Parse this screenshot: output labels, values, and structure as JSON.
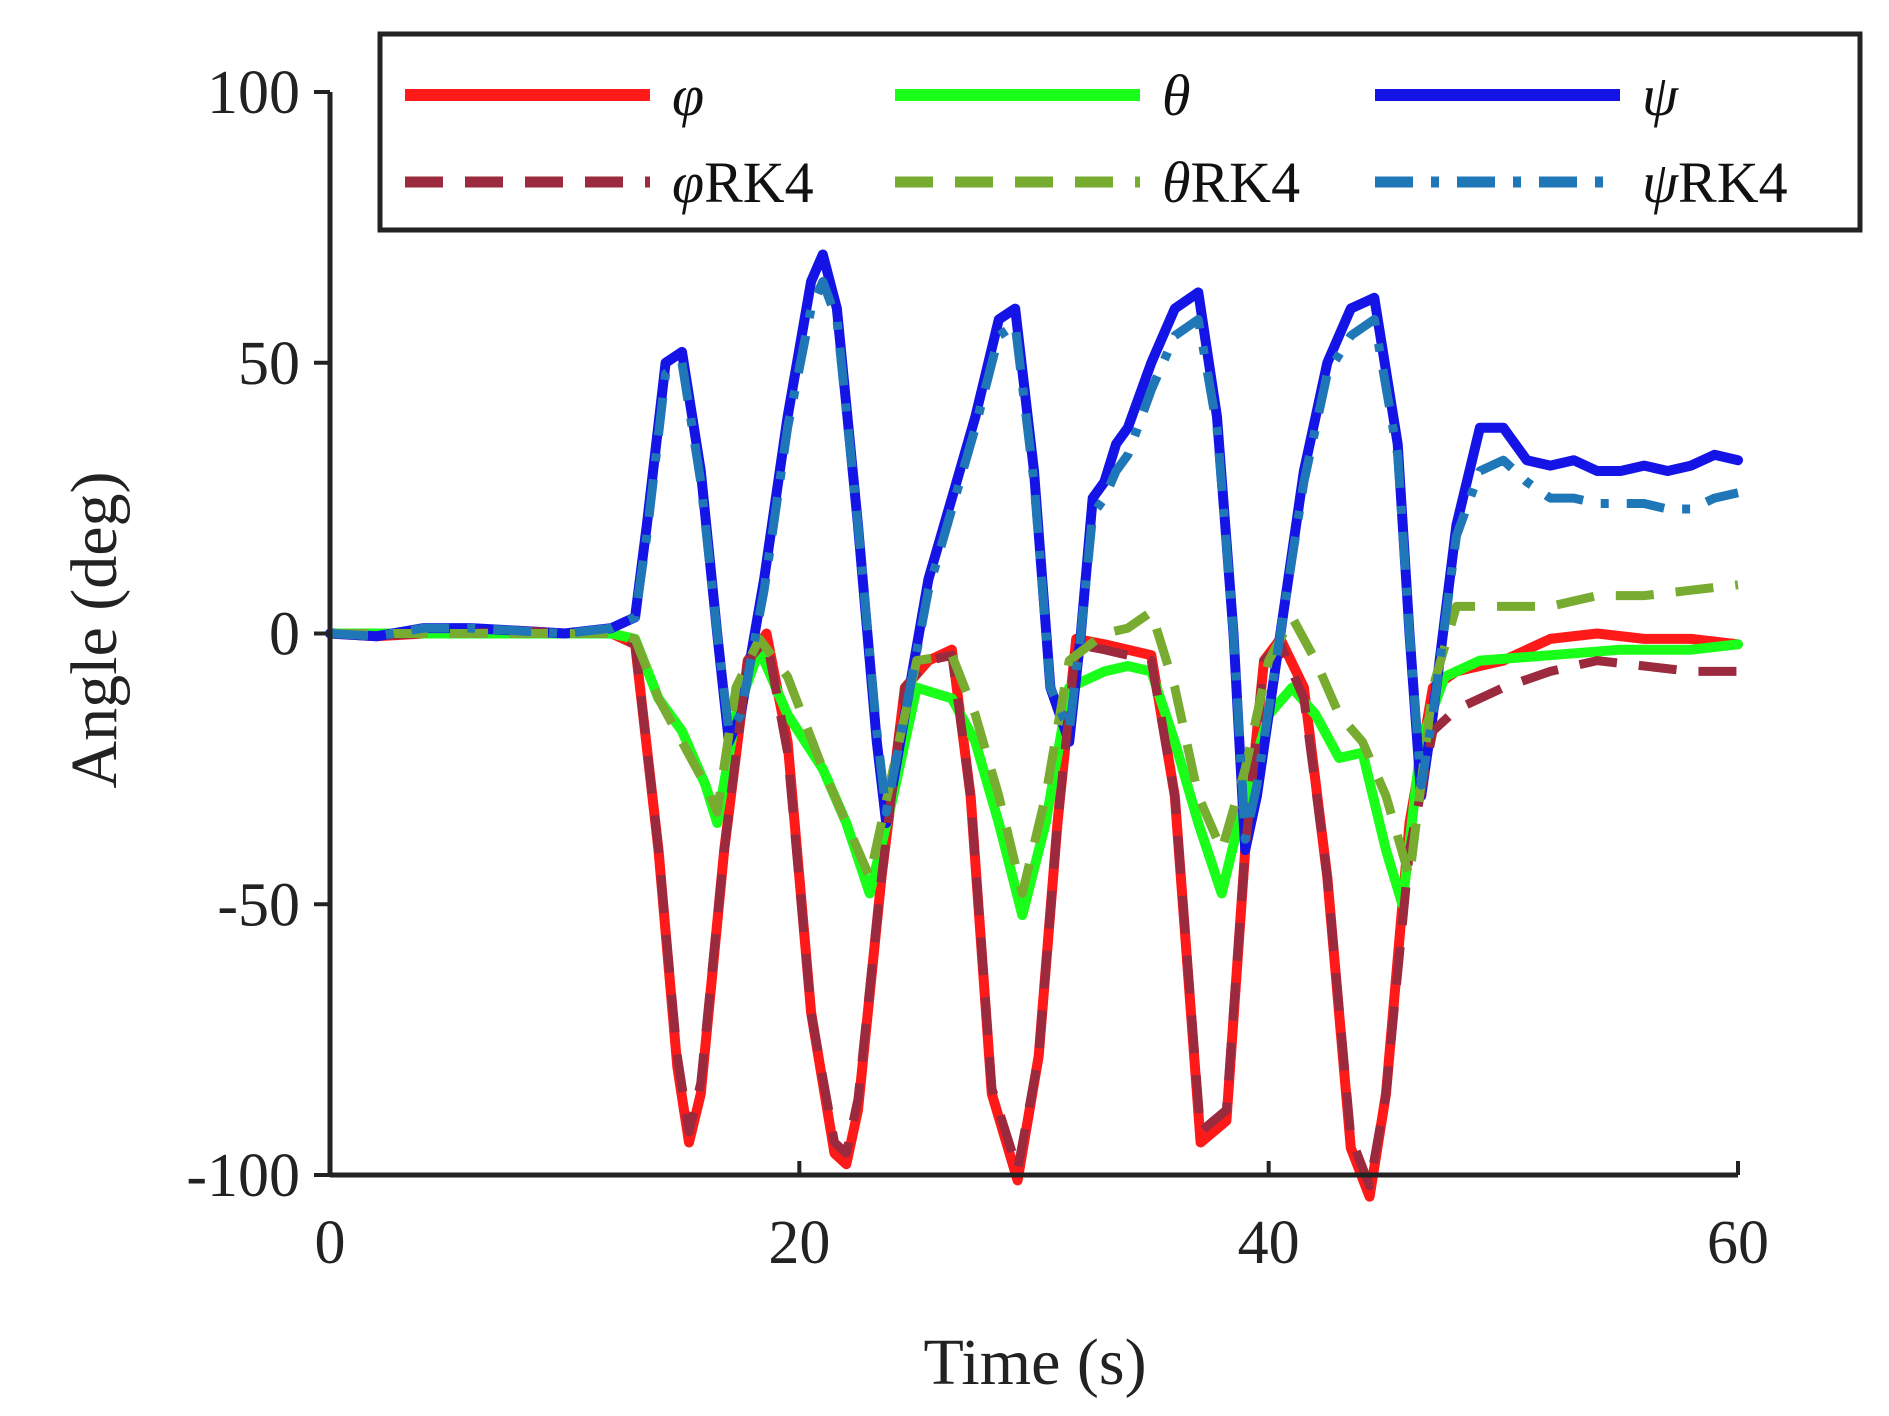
{
  "chart_data": {
    "type": "line",
    "title": "",
    "xlabel": "Time (s)",
    "ylabel": "Angle (deg)",
    "xlim": [
      0,
      60
    ],
    "ylim": [
      -100,
      100
    ],
    "x_ticks": [
      "0",
      "20",
      "40",
      "60"
    ],
    "y_ticks": [
      "100",
      "50",
      "0",
      "-50",
      "-100"
    ],
    "x_tick_values": [
      0,
      20,
      40,
      60
    ],
    "y_tick_values": [
      100,
      50,
      0,
      -50,
      -100
    ],
    "grid": false,
    "legend_position": "top",
    "series": [
      {
        "name": "φ",
        "symbol": "φ",
        "suffix": "",
        "color": "#ff1a1a",
        "style": "solid",
        "x": [
          0,
          2,
          4,
          6,
          8,
          10,
          12,
          13,
          14,
          14.8,
          15.3,
          15.8,
          16.8,
          17.8,
          18.6,
          19.5,
          20.5,
          21.5,
          22,
          22.5,
          23.5,
          24.5,
          25.5,
          26.5,
          27.3,
          28.2,
          29.3,
          30.2,
          31,
          31.8,
          33,
          34,
          35,
          36,
          37.1,
          38.2,
          39,
          39.8,
          40.5,
          41.5,
          42.5,
          43.5,
          44.3,
          45,
          46,
          47,
          48,
          50,
          52,
          54,
          56,
          58,
          60
        ],
        "values": [
          0,
          -0.5,
          0,
          0,
          0.5,
          0,
          0,
          -2,
          -40,
          -80,
          -94,
          -85,
          -40,
          -5,
          0,
          -20,
          -70,
          -96,
          -98,
          -88,
          -45,
          -10,
          -5,
          -3,
          -30,
          -85,
          -101,
          -78,
          -35,
          -1,
          -2,
          -3,
          -4,
          -30,
          -94,
          -90,
          -40,
          -5,
          -1,
          -10,
          -45,
          -95,
          -104,
          -85,
          -35,
          -10,
          -7,
          -5,
          -1,
          0,
          -1,
          -1,
          -2
        ]
      },
      {
        "name": "θ",
        "symbol": "θ",
        "suffix": "",
        "color": "#1aff1a",
        "style": "solid",
        "x": [
          0,
          2,
          4,
          6,
          8,
          10,
          12,
          13,
          14,
          15,
          16,
          16.5,
          17.3,
          18.3,
          19.5,
          21,
          22,
          23,
          24,
          25,
          26.5,
          27.5,
          28.5,
          29.5,
          30.5,
          31.5,
          33,
          34,
          35,
          36,
          37,
          38,
          39,
          40,
          41,
          42,
          43,
          44,
          45,
          45.7,
          46.5,
          47.5,
          49,
          52,
          55,
          58,
          60
        ],
        "values": [
          0,
          0,
          0,
          0,
          0,
          0,
          0,
          -1,
          -12,
          -18,
          -28,
          -35,
          -15,
          -3,
          -15,
          -25,
          -35,
          -48,
          -30,
          -10,
          -12,
          -20,
          -35,
          -52,
          -35,
          -10,
          -7,
          -6,
          -7,
          -20,
          -35,
          -48,
          -30,
          -15,
          -10,
          -15,
          -23,
          -22,
          -40,
          -50,
          -20,
          -8,
          -5,
          -4,
          -3,
          -3,
          -2
        ]
      },
      {
        "name": "ψ",
        "symbol": "ψ",
        "suffix": "",
        "color": "#1414e6",
        "style": "solid",
        "x": [
          0,
          2,
          4,
          6,
          8,
          10,
          12,
          13,
          13.5,
          14.3,
          15,
          15.8,
          16.5,
          17,
          17.5,
          18.5,
          19.5,
          20.5,
          21,
          21.6,
          22.5,
          23.3,
          23.7,
          24.5,
          25.5,
          26.5,
          27.5,
          28.5,
          29.2,
          30,
          30.7,
          31.5,
          32,
          32.5,
          33,
          33.5,
          34,
          35,
          36,
          37,
          37.8,
          38.5,
          39,
          39.5,
          40.5,
          41.5,
          42.5,
          43.5,
          44.5,
          45.5,
          46,
          46.5,
          47,
          48,
          49,
          50,
          51,
          52,
          53,
          54,
          55,
          56,
          57,
          58,
          59,
          60
        ],
        "values": [
          0,
          -0.5,
          1,
          1,
          0.5,
          0,
          1,
          3,
          20,
          50,
          52,
          30,
          0,
          -20,
          -15,
          10,
          40,
          65,
          70,
          60,
          20,
          -20,
          -35,
          -15,
          10,
          25,
          40,
          58,
          60,
          30,
          -10,
          -20,
          0,
          25,
          28,
          35,
          38,
          50,
          60,
          63,
          40,
          0,
          -40,
          -30,
          0,
          30,
          50,
          60,
          62,
          35,
          0,
          -30,
          -15,
          20,
          38,
          38,
          32,
          31,
          32,
          30,
          30,
          31,
          30,
          31,
          33,
          32
        ]
      },
      {
        "name": "φRK4",
        "symbol": "φ",
        "suffix": "RK4",
        "color": "#9c2a3e",
        "style": "dashed",
        "x": [
          0,
          2,
          4,
          6,
          8,
          10,
          12,
          13,
          14,
          14.8,
          15.3,
          15.8,
          16.8,
          17.8,
          18.6,
          19.5,
          20.5,
          21.5,
          22,
          22.5,
          23.5,
          24.5,
          25.5,
          26.5,
          27.3,
          28.2,
          29.3,
          30.2,
          31,
          31.8,
          33,
          34,
          35,
          36,
          37.1,
          38.2,
          39,
          39.8,
          40.5,
          41.5,
          42.5,
          43.5,
          44.3,
          45,
          46,
          47,
          48,
          50,
          52,
          54,
          56,
          58,
          60
        ],
        "values": [
          0,
          -0.5,
          0,
          0,
          0.5,
          0,
          0,
          -2,
          -40,
          -78,
          -92,
          -83,
          -40,
          -5,
          -1,
          -22,
          -70,
          -94,
          -96,
          -86,
          -45,
          -10,
          -5,
          -4,
          -30,
          -84,
          -99,
          -78,
          -35,
          -2,
          -3,
          -4,
          -5,
          -30,
          -92,
          -88,
          -40,
          -5,
          -2,
          -12,
          -45,
          -93,
          -102,
          -85,
          -40,
          -18,
          -14,
          -10,
          -7,
          -5,
          -6,
          -7,
          -7
        ]
      },
      {
        "name": "θRK4",
        "symbol": "θ",
        "suffix": "RK4",
        "color": "#77ac30",
        "style": "dashed",
        "x": [
          0,
          2,
          4,
          6,
          8,
          10,
          12,
          13,
          14,
          15,
          16,
          16.5,
          17.3,
          18.3,
          19.5,
          21,
          22,
          23,
          24,
          25,
          26.5,
          27.5,
          28.5,
          29.5,
          30.5,
          31.5,
          33,
          34,
          35,
          36,
          37,
          38,
          39,
          40,
          41,
          42,
          43,
          44,
          45,
          46,
          47,
          48,
          50,
          52,
          54,
          56,
          58,
          60
        ],
        "values": [
          0,
          0,
          0,
          0,
          0,
          0,
          0,
          -1,
          -12,
          -20,
          -28,
          -33,
          -10,
          -1,
          -8,
          -25,
          -35,
          -45,
          -25,
          -5,
          -4,
          -15,
          -30,
          -48,
          -30,
          -5,
          0,
          1,
          4,
          -10,
          -30,
          -40,
          -25,
          -5,
          3,
          -5,
          -15,
          -20,
          -30,
          -45,
          -10,
          5,
          5,
          5,
          7,
          7,
          8,
          9
        ]
      },
      {
        "name": "ψRK4",
        "symbol": "ψ",
        "suffix": "RK4",
        "color": "#1f77b8",
        "style": "dashdot",
        "x": [
          0,
          2,
          4,
          6,
          8,
          10,
          12,
          13,
          13.5,
          14.3,
          15,
          15.8,
          16.5,
          17,
          17.5,
          18.5,
          19.5,
          20.5,
          21,
          21.6,
          22.5,
          23.3,
          23.7,
          24.5,
          25.5,
          26.5,
          27.5,
          28.5,
          29.2,
          30,
          30.7,
          31.5,
          32,
          32.5,
          33,
          33.5,
          34,
          35,
          36,
          37,
          37.8,
          38.5,
          39,
          39.5,
          40.5,
          41.5,
          42.5,
          43.5,
          44.5,
          45.5,
          46,
          46.5,
          47,
          48,
          49,
          50,
          51,
          52,
          53,
          54,
          55,
          56,
          57,
          58,
          59,
          60
        ],
        "values": [
          0,
          -0.5,
          1,
          1,
          0.5,
          0,
          1,
          3,
          18,
          48,
          50,
          28,
          0,
          -18,
          -15,
          8,
          38,
          60,
          65,
          58,
          20,
          -18,
          -33,
          -15,
          8,
          23,
          38,
          55,
          57,
          28,
          -10,
          -18,
          0,
          22,
          25,
          30,
          33,
          45,
          55,
          58,
          38,
          0,
          -38,
          -28,
          0,
          28,
          48,
          55,
          58,
          33,
          0,
          -28,
          -15,
          18,
          30,
          32,
          28,
          25,
          25,
          24,
          24,
          24,
          23,
          23,
          25,
          26
        ]
      }
    ]
  }
}
